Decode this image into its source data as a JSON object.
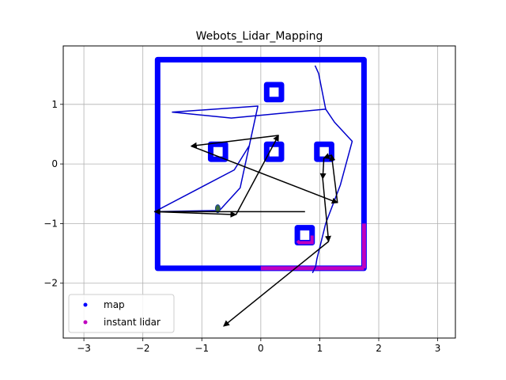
{
  "chart_data": {
    "type": "scatter",
    "title": "Webots_Lidar_Mapping",
    "xlabel": "",
    "ylabel": "",
    "xlim": [
      -3.35,
      3.3
    ],
    "ylim": [
      -2.92,
      1.98
    ],
    "xticks": [
      -3,
      -2,
      -1,
      0,
      1,
      2,
      3
    ],
    "xtick_labels": [
      "−3",
      "−2",
      "−1",
      "0",
      "1",
      "2",
      "3"
    ],
    "yticks": [
      -2,
      -1,
      0,
      1
    ],
    "ytick_labels": [
      "−2",
      "−1",
      "0",
      "1"
    ],
    "grid": true,
    "legend": {
      "position": "lower-left",
      "entries": [
        {
          "label": "map",
          "color": "#0000ff",
          "marker": "dot"
        },
        {
          "label": "instant lidar",
          "color": "#bf00bf",
          "marker": "dot"
        }
      ]
    },
    "colors": {
      "map": "#0000ff",
      "lidar": "#bf00bf",
      "path": "#0000cc",
      "arrows": "#000000",
      "robot_marker": "#3a6e3a"
    },
    "walls": {
      "outer": {
        "x0": -1.75,
        "x1": 1.75,
        "y0": -1.75,
        "y1": 1.75
      },
      "boxes": [
        {
          "x0": 0.1,
          "x1": 0.35,
          "y0": 1.08,
          "y1": 1.33
        },
        {
          "x0": -0.85,
          "x1": -0.6,
          "y0": 0.08,
          "y1": 0.33
        },
        {
          "x0": 0.1,
          "x1": 0.35,
          "y0": 0.08,
          "y1": 0.33
        },
        {
          "x0": 0.95,
          "x1": 1.2,
          "y0": 0.08,
          "y1": 0.33
        },
        {
          "x0": 0.62,
          "x1": 0.87,
          "y0": -1.32,
          "y1": -1.07
        }
      ]
    },
    "instant_lidar": {
      "bottom": {
        "x0": 0.0,
        "x1": 1.75,
        "y": -1.75
      },
      "right": {
        "x": 1.75,
        "y0": -1.75,
        "y1": -1.0
      },
      "box": {
        "x0": 0.62,
        "x1": 0.87,
        "y0": -1.32,
        "y1": -1.07
      }
    },
    "trajectory": [
      [
        0.92,
        1.65
      ],
      [
        0.98,
        1.52
      ],
      [
        1.1,
        0.92
      ],
      [
        1.25,
        0.7
      ],
      [
        1.55,
        0.38
      ],
      [
        1.35,
        -0.35
      ],
      [
        1.1,
        -1.0
      ],
      [
        0.95,
        -1.6
      ],
      [
        0.93,
        -1.72
      ],
      [
        0.88,
        -1.82
      ],
      [
        0.93,
        -1.72
      ],
      [
        0.95,
        -1.6
      ],
      [
        1.1,
        -1.0
      ],
      [
        1.35,
        -0.35
      ],
      [
        1.55,
        0.38
      ],
      [
        1.25,
        0.7
      ],
      [
        1.1,
        0.92
      ],
      [
        -0.5,
        0.77
      ],
      [
        -1.5,
        0.87
      ],
      [
        -0.05,
        0.97
      ],
      [
        -0.35,
        -0.4
      ],
      [
        -0.7,
        -0.78
      ],
      [
        -1.8,
        -0.8
      ],
      [
        -0.45,
        -0.1
      ],
      [
        -0.2,
        0.3
      ]
    ],
    "arrows": [
      [
        [
          0.75,
          -0.8
        ],
        [
          -1.8,
          -0.8
        ]
      ],
      [
        [
          -1.8,
          -0.8
        ],
        [
          -0.42,
          -0.85
        ]
      ],
      [
        [
          -0.42,
          -0.85
        ],
        [
          0.3,
          0.48
        ]
      ],
      [
        [
          0.3,
          0.48
        ],
        [
          -1.18,
          0.3
        ]
      ],
      [
        [
          -1.18,
          0.3
        ],
        [
          1.3,
          -0.65
        ]
      ],
      [
        [
          1.3,
          -0.65
        ],
        [
          1.2,
          0.15
        ]
      ],
      [
        [
          1.2,
          0.15
        ],
        [
          1.07,
          0.1
        ]
      ],
      [
        [
          1.07,
          0.1
        ],
        [
          1.05,
          -0.25
        ]
      ],
      [
        [
          1.05,
          -0.25
        ],
        [
          1.15,
          -1.3
        ]
      ],
      [
        [
          1.15,
          -1.3
        ],
        [
          -0.63,
          -2.72
        ]
      ]
    ],
    "robot_marker": [
      -0.73,
      -0.75
    ]
  }
}
